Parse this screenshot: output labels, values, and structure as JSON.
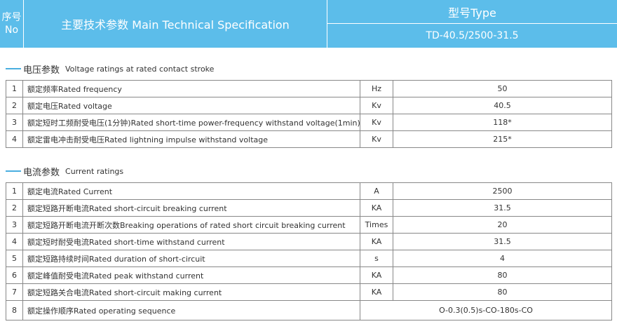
{
  "header": {
    "no_cn": "序号",
    "no_en": "No",
    "title": "主要技术参数  Main Technical Specification",
    "type_label": "型号Type",
    "model": "TD-40.5/2500-31.5"
  },
  "sections": [
    {
      "title_cn": "电压参数",
      "title_en": "Voltage ratings at rated contact stroke",
      "rows": [
        [
          "1",
          "额定频率Rated frequency",
          "Hz",
          "50"
        ],
        [
          "2",
          "额定电压Rated voltage",
          "Kv",
          "40.5"
        ],
        [
          "3",
          "额定短时工频耐受电压(1分钟)Rated short-time power-frequency withstand voltage(1min)",
          "Kv",
          "118*"
        ],
        [
          "4",
          "额定雷电冲击耐受电压Rated lightning impulse withstand voltage",
          "Kv",
          "215*"
        ]
      ]
    },
    {
      "title_cn": "电流参数",
      "title_en": "Current ratings",
      "rows": [
        [
          "1",
          "额定电流Rated Current",
          "A",
          "2500"
        ],
        [
          "2",
          "额定短路开断电流Rated short-circuit breaking current",
          "KA",
          "31.5"
        ],
        [
          "3",
          "额定短路开断电流开断次数Breaking operations of rated short circuit breaking current",
          "Times",
          "20"
        ],
        [
          "4",
          "额定短时耐受电流Rated short-time withstand current",
          "KA",
          "31.5"
        ],
        [
          "5",
          "额定短路持续时间Rated duration of short-circuit",
          "s",
          "4"
        ],
        [
          "6",
          "额定峰值耐受电流Rated peak withstand current",
          "KA",
          "80"
        ],
        [
          "7",
          "额定短路关合电流Rated short-circuit making current",
          "KA",
          "80"
        ],
        [
          "8",
          "额定操作顺序Rated operating sequence",
          "O-0.3(0.5)s-CO-180s-CO"
        ]
      ]
    }
  ]
}
